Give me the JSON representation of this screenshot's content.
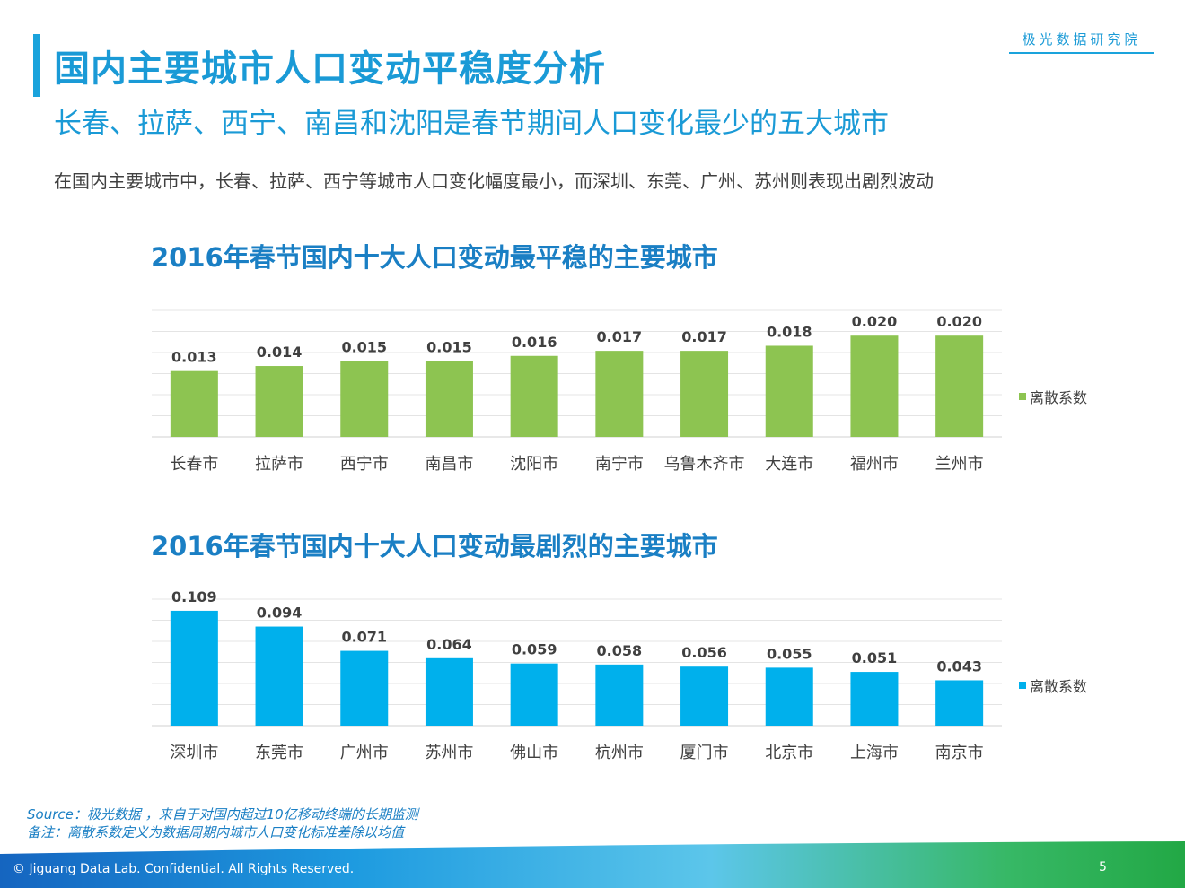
{
  "header": {
    "title": "国内主要城市人口变动平稳度分析",
    "subtitle": "长春、拉萨、西宁、南昌和沈阳是春节期间人口变化最少的五大城市",
    "brand": "极光数据研究院",
    "description": "在国内主要城市中，长春、拉萨、西宁等城市人口变化幅度最小，而深圳、东莞、广州、苏州则表现出剧烈波动"
  },
  "colors": {
    "accent": "#1a9ad6",
    "series_stable": "#8dc451",
    "series_volatile": "#00b0ec"
  },
  "chart_data": [
    {
      "type": "bar",
      "title": "2016年春节国内十大人口变动最平稳的主要城市",
      "categories": [
        "长春市",
        "拉萨市",
        "西宁市",
        "南昌市",
        "沈阳市",
        "南宁市",
        "乌鲁木齐市",
        "大连市",
        "福州市",
        "兰州市"
      ],
      "series": [
        {
          "name": "离散系数",
          "values": [
            0.013,
            0.014,
            0.015,
            0.015,
            0.016,
            0.017,
            0.017,
            0.018,
            0.02,
            0.02
          ],
          "labels": [
            "0.013",
            "0.014",
            "0.015",
            "0.015",
            "0.016",
            "0.017",
            "0.017",
            "0.018",
            "0.020",
            "0.020"
          ]
        }
      ],
      "ylim": [
        0,
        0.025
      ],
      "gridlines": 6,
      "legend": "right"
    },
    {
      "type": "bar",
      "title": "2016年春节国内十大人口变动最剧烈的主要城市",
      "categories": [
        "深圳市",
        "东莞市",
        "广州市",
        "苏州市",
        "佛山市",
        "杭州市",
        "厦门市",
        "北京市",
        "上海市",
        "南京市"
      ],
      "series": [
        {
          "name": "离散系数",
          "values": [
            0.109,
            0.094,
            0.071,
            0.064,
            0.059,
            0.058,
            0.056,
            0.055,
            0.051,
            0.043
          ],
          "labels": [
            "0.109",
            "0.094",
            "0.071",
            "0.064",
            "0.059",
            "0.058",
            "0.056",
            "0.055",
            "0.051",
            "0.043"
          ]
        }
      ],
      "ylim": [
        0,
        0.12
      ],
      "gridlines": 6,
      "legend": "right"
    }
  ],
  "footnotes": {
    "source": "Source：极光数据 ，来自于对国内超过10亿移动终端的长期监测",
    "note": "备注：离散系数定义为数据周期内城市人口变化标准差除以均值"
  },
  "footer": {
    "copyright": "© Jiguang Data Lab. Confidential. All Rights Reserved.",
    "page_number": "5"
  }
}
